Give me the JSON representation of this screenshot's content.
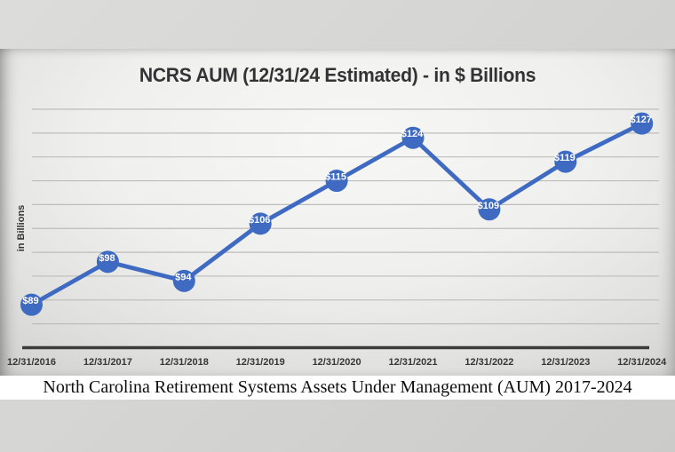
{
  "caption": "North Carolina Retirement Systems Assets Under Management (AUM) 2017-2024",
  "chart_data": {
    "type": "line",
    "title": "NCRS AUM (12/31/24 Estimated) - in $ Billions",
    "xlabel": "",
    "ylabel": "in Billions",
    "categories": [
      "12/31/2016",
      "12/31/2017",
      "12/31/2018",
      "12/31/2019",
      "12/31/2020",
      "12/31/2021",
      "12/31/2022",
      "12/31/2023",
      "12/31/2024"
    ],
    "series": [
      {
        "name": "NCRS AUM",
        "values": [
          89,
          98,
          94,
          106,
          115,
          124,
          109,
          119,
          127
        ]
      }
    ],
    "data_labels": [
      "$89",
      "$98",
      "$94",
      "$106",
      "$115",
      "$124",
      "$109",
      "$119",
      "$127"
    ],
    "ylim": [
      80,
      130
    ],
    "gridline_step": 5,
    "grid": true,
    "legend_position": "none",
    "y_tick_labels_shown": false,
    "colors": {
      "line": "#3e6ac2",
      "marker": "#3e6ac2",
      "data_label_text": "#ffffff",
      "axis_line": "#3c3c3c",
      "gridline": "#bdbdbd",
      "tick_text": "#363636",
      "title_text": "#333336"
    }
  }
}
